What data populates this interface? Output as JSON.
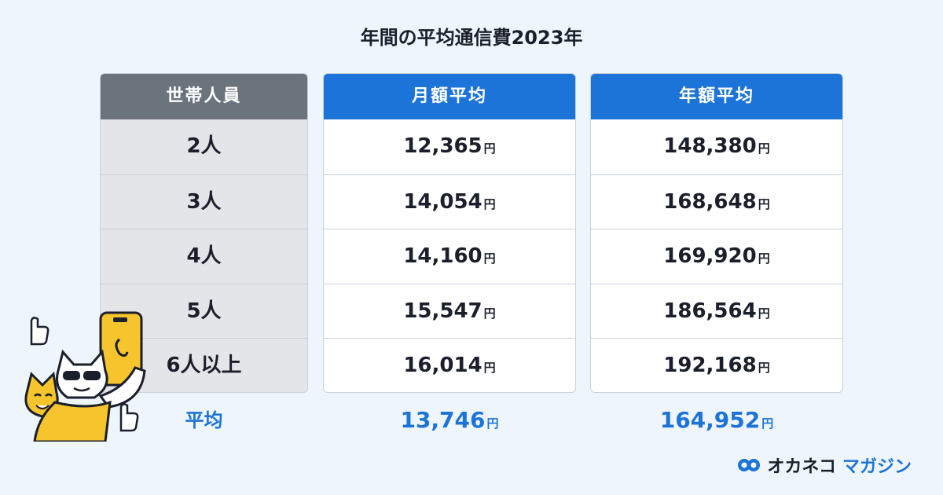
{
  "title": "年間の平均通信費2023年",
  "columns": {
    "members": "世帯人員",
    "monthly": "月額平均",
    "yearly": "年額平均"
  },
  "rows": [
    {
      "members": "2人",
      "monthly": "12,365",
      "yearly": "148,380"
    },
    {
      "members": "3人",
      "monthly": "14,054",
      "yearly": "168,648"
    },
    {
      "members": "4人",
      "monthly": "14,160",
      "yearly": "169,920"
    },
    {
      "members": "5人",
      "monthly": "15,547",
      "yearly": "186,564"
    },
    {
      "members": "6人以上",
      "monthly": "16,014",
      "yearly": "192,168"
    }
  ],
  "average": {
    "label": "平均",
    "monthly": "13,746",
    "yearly": "164,952"
  },
  "currency_unit": "円",
  "logo": {
    "part1": "オカネコ",
    "part2": "マガジン"
  },
  "colors": {
    "accent": "#1c73d8",
    "header_gray": "#6b737c",
    "background": "#eef5fc"
  }
}
